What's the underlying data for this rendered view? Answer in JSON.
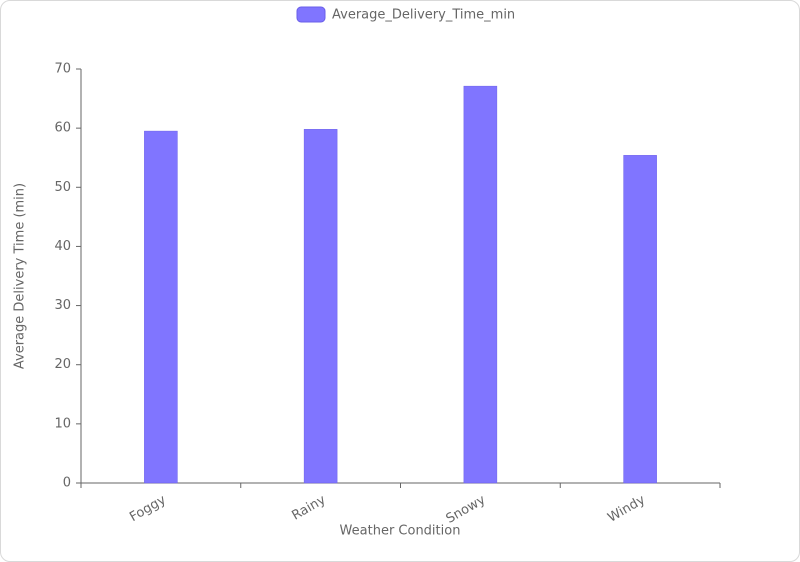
{
  "chart_data": {
    "type": "bar",
    "legend": "Average_Delivery_Time_min",
    "x_label": "Weather Condition",
    "y_label": "Average Delivery Time (min)",
    "categories": [
      "Foggy",
      "Rainy",
      "Snowy",
      "Windy"
    ],
    "values": [
      59.5,
      59.8,
      67.1,
      55.4
    ],
    "color": "#8075ff",
    "ylim": [
      0,
      70
    ],
    "yticks": [
      0,
      10,
      20,
      30,
      40,
      50,
      60,
      70
    ],
    "grid": false
  }
}
